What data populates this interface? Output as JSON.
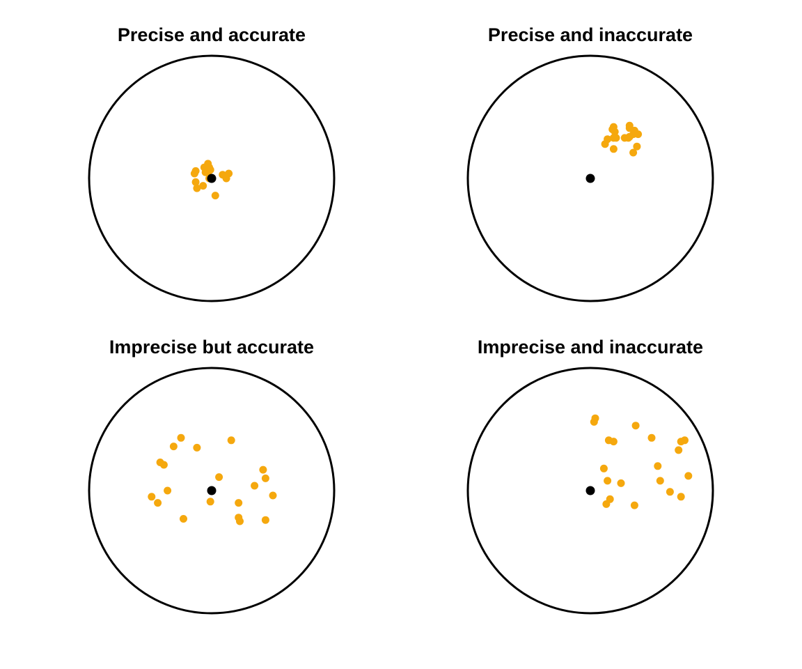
{
  "chart_data": [
    {
      "type": "scatter",
      "title": "Precise and accurate",
      "xlim": [
        -1,
        1
      ],
      "ylim": [
        -1,
        1
      ],
      "grid": false,
      "target": {
        "x": 0,
        "y": 0
      },
      "points": [
        {
          "x": -0.03,
          "y": 0.12
        },
        {
          "x": -0.02,
          "y": 0.09
        },
        {
          "x": -0.04,
          "y": 0.07
        },
        {
          "x": -0.06,
          "y": 0.09
        },
        {
          "x": -0.01,
          "y": 0.07
        },
        {
          "x": -0.05,
          "y": 0.05
        },
        {
          "x": -0.03,
          "y": 0.05
        },
        {
          "x": -0.13,
          "y": 0.06
        },
        {
          "x": -0.14,
          "y": 0.04
        },
        {
          "x": -0.13,
          "y": -0.03
        },
        {
          "x": -0.12,
          "y": -0.08
        },
        {
          "x": -0.07,
          "y": -0.06
        },
        {
          "x": 0.09,
          "y": 0.03
        },
        {
          "x": 0.11,
          "y": 0.02
        },
        {
          "x": 0.14,
          "y": 0.04
        },
        {
          "x": 0.12,
          "y": 0.0
        },
        {
          "x": 0.03,
          "y": -0.14
        },
        {
          "x": -0.02,
          "y": 0.0
        }
      ],
      "point_color": "#f5a80e",
      "target_color": "#000000"
    },
    {
      "type": "scatter",
      "title": "Precise and inaccurate",
      "xlim": [
        -1,
        1
      ],
      "ylim": [
        -1,
        1
      ],
      "grid": false,
      "target": {
        "x": 0,
        "y": 0
      },
      "points": [
        {
          "x": 0.19,
          "y": 0.42
        },
        {
          "x": 0.18,
          "y": 0.4
        },
        {
          "x": 0.2,
          "y": 0.38
        },
        {
          "x": 0.32,
          "y": 0.43
        },
        {
          "x": 0.32,
          "y": 0.41
        },
        {
          "x": 0.36,
          "y": 0.39
        },
        {
          "x": 0.39,
          "y": 0.36
        },
        {
          "x": 0.35,
          "y": 0.36
        },
        {
          "x": 0.32,
          "y": 0.34
        },
        {
          "x": 0.31,
          "y": 0.33
        },
        {
          "x": 0.28,
          "y": 0.33
        },
        {
          "x": 0.19,
          "y": 0.33
        },
        {
          "x": 0.21,
          "y": 0.33
        },
        {
          "x": 0.14,
          "y": 0.32
        },
        {
          "x": 0.12,
          "y": 0.28
        },
        {
          "x": 0.19,
          "y": 0.24
        },
        {
          "x": 0.38,
          "y": 0.26
        },
        {
          "x": 0.35,
          "y": 0.21
        }
      ],
      "point_color": "#f5a80e",
      "target_color": "#000000"
    },
    {
      "type": "scatter",
      "title": "Imprecise but accurate",
      "xlim": [
        -1,
        1
      ],
      "ylim": [
        -1,
        1
      ],
      "grid": false,
      "target": {
        "x": 0,
        "y": 0
      },
      "points": [
        {
          "x": -0.25,
          "y": 0.43
        },
        {
          "x": -0.31,
          "y": 0.36
        },
        {
          "x": -0.12,
          "y": 0.35
        },
        {
          "x": 0.16,
          "y": 0.41
        },
        {
          "x": -0.42,
          "y": 0.23
        },
        {
          "x": -0.39,
          "y": 0.21
        },
        {
          "x": 0.06,
          "y": 0.11
        },
        {
          "x": 0.42,
          "y": 0.17
        },
        {
          "x": 0.44,
          "y": 0.1
        },
        {
          "x": 0.35,
          "y": 0.04
        },
        {
          "x": -0.36,
          "y": 0.0
        },
        {
          "x": -0.49,
          "y": -0.05
        },
        {
          "x": -0.44,
          "y": -0.1
        },
        {
          "x": -0.01,
          "y": -0.09
        },
        {
          "x": 0.22,
          "y": -0.1
        },
        {
          "x": 0.5,
          "y": -0.04
        },
        {
          "x": -0.23,
          "y": -0.23
        },
        {
          "x": 0.22,
          "y": -0.22
        },
        {
          "x": 0.23,
          "y": -0.25
        },
        {
          "x": 0.44,
          "y": -0.24
        }
      ],
      "point_color": "#f5a80e",
      "target_color": "#000000"
    },
    {
      "type": "scatter",
      "title": "Imprecise and inaccurate",
      "xlim": [
        -1,
        1
      ],
      "ylim": [
        -1,
        1
      ],
      "grid": false,
      "target": {
        "x": 0,
        "y": 0
      },
      "points": [
        {
          "x": 0.04,
          "y": 0.59
        },
        {
          "x": 0.03,
          "y": 0.56
        },
        {
          "x": 0.37,
          "y": 0.53
        },
        {
          "x": 0.15,
          "y": 0.41
        },
        {
          "x": 0.19,
          "y": 0.4
        },
        {
          "x": 0.5,
          "y": 0.43
        },
        {
          "x": 0.74,
          "y": 0.4
        },
        {
          "x": 0.77,
          "y": 0.41
        },
        {
          "x": 0.72,
          "y": 0.33
        },
        {
          "x": 0.11,
          "y": 0.18
        },
        {
          "x": 0.55,
          "y": 0.2
        },
        {
          "x": 0.8,
          "y": 0.12
        },
        {
          "x": 0.14,
          "y": 0.08
        },
        {
          "x": 0.25,
          "y": 0.06
        },
        {
          "x": 0.57,
          "y": 0.08
        },
        {
          "x": 0.65,
          "y": -0.01
        },
        {
          "x": 0.74,
          "y": -0.05
        },
        {
          "x": 0.16,
          "y": -0.07
        },
        {
          "x": 0.13,
          "y": -0.11
        },
        {
          "x": 0.36,
          "y": -0.12
        }
      ],
      "point_color": "#f5a80e",
      "target_color": "#000000"
    }
  ]
}
